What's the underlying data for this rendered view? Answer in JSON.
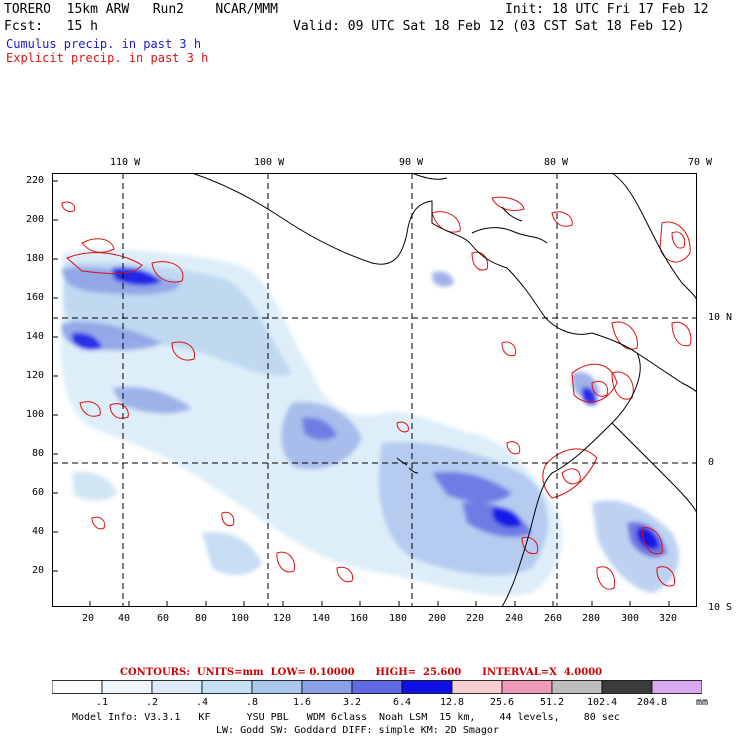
{
  "header": {
    "model": "TORERO  15km ARW   Run2    NCAR/MMM",
    "init": "Init: 18 UTC Fri 17 Feb 12",
    "fcst": "Fcst:   15 h",
    "valid": "Valid: 09 UTC Sat 18 Feb 12 (03 CST Sat 18 Feb 12)",
    "cumulus_label": "Cumulus precip. in past 3 h",
    "explicit_label": "Explicit precip. in past 3 h"
  },
  "map": {
    "top_lon_labels": [
      "110 W",
      "100 W",
      "90 W",
      "80 W",
      "70 W"
    ],
    "right_lat_labels": [
      "10 N",
      "0",
      "10 S"
    ],
    "left_ticks": [
      "220",
      "200",
      "180",
      "160",
      "140",
      "120",
      "100",
      "80",
      "60",
      "40",
      "20"
    ],
    "bottom_ticks": [
      "20",
      "40",
      "60",
      "80",
      "100",
      "120",
      "140",
      "160",
      "180",
      "200",
      "220",
      "240",
      "260",
      "280",
      "300",
      "320"
    ],
    "grid_range": {
      "x": [
        0,
        334
      ],
      "y": [
        0,
        224
      ]
    }
  },
  "contour_info": "CONTOURS:  UNITS=mm  LOW= 0.10000      HIGH=  25.600      INTERVAL=X  4.0000",
  "legend": {
    "levels": [
      ".1",
      ".2",
      ".4",
      ".8",
      "1.6",
      "3.2",
      "6.4",
      "12.8",
      "25.6",
      "51.2",
      "102.4",
      "204.8"
    ],
    "unit": "mm",
    "colors": [
      "#ffffff",
      "#eef5fb",
      "#dcebf7",
      "#c4e0f2",
      "#a9c8ec",
      "#8a9fe6",
      "#6068e2",
      "#0f10e6",
      "#f6d0d0",
      "#f09ab9",
      "#bdbdbd",
      "#3c3c3c",
      "#d8a8f0"
    ]
  },
  "model_info_1": "Model Info: V3.3.1   KF      YSU PBL   WDM 6class  Noah LSM  15 km,    44 levels,    80 sec",
  "model_info_2": "LW: Godd SW: Goddard DIFF: simple KM: 2D Smagor"
}
